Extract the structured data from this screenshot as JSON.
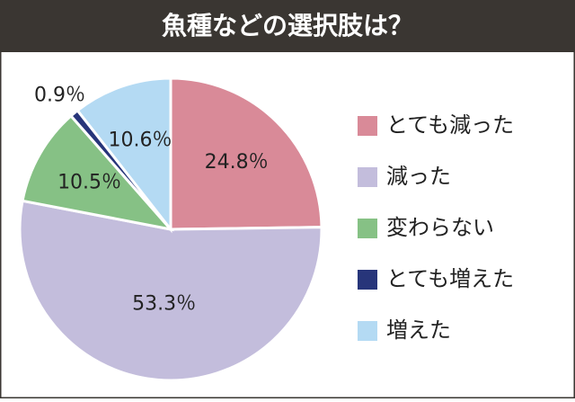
{
  "chart_data": {
    "type": "pie",
    "title": "魚種などの選択肢は？",
    "categories": [
      "とても減った",
      "減った",
      "変わらない",
      "とても増えた",
      "増えた"
    ],
    "values": [
      24.8,
      53.3,
      10.5,
      0.9,
      10.6
    ],
    "value_labels": [
      "24.8％",
      "53.3％",
      "10.5％",
      "0.9％",
      "10.6％"
    ],
    "colors": [
      "#d98a98",
      "#c3bddc",
      "#86c185",
      "#27357a",
      "#b4daf3"
    ]
  }
}
